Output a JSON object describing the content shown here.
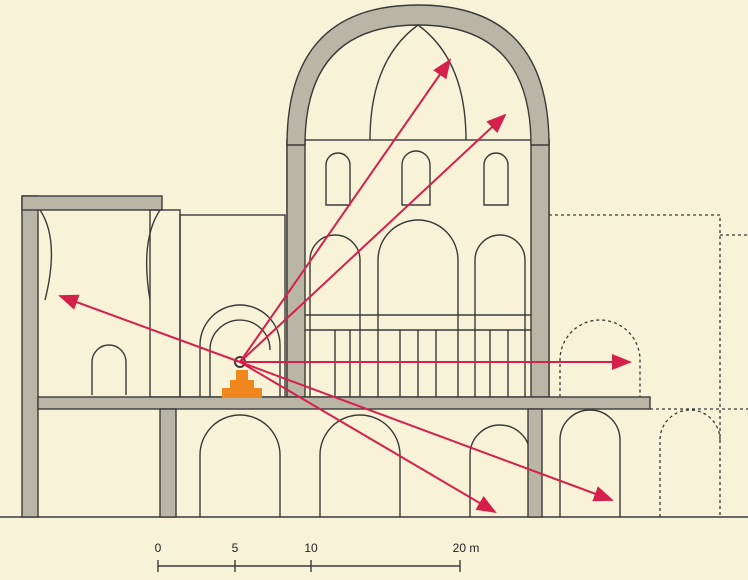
{
  "scale_bar": {
    "labels": [
      "0",
      "5",
      "10",
      "20 m"
    ]
  }
}
